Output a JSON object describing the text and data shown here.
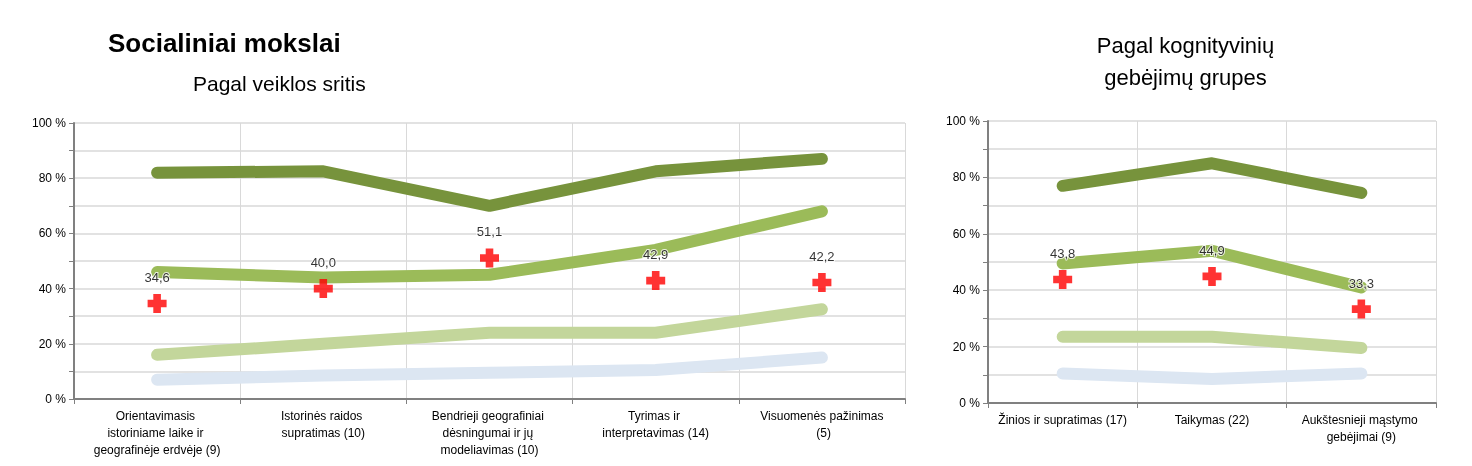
{
  "chart_data": [
    {
      "type": "line",
      "title": "Socialiniai mokslai",
      "subtitle": "Pagal veiklos sritis",
      "categories": [
        "Orientavimasis istoriniame laike ir geografinėje erdvėje (9)",
        "Istorinės raidos supratimas (10)",
        "Bendrieji geografiniai dėsningumai ir jų modeliavimas (10)",
        "Tyrimas ir interpretavimas (14)",
        "Visuomenės pažinimas (5)"
      ],
      "series": [
        {
          "color": "#77933c",
          "values": [
            82,
            82.5,
            70,
            82.5,
            87
          ]
        },
        {
          "color": "#9bbb59",
          "values": [
            46,
            44,
            45,
            54,
            68
          ]
        },
        {
          "color": "#c3d69b",
          "values": [
            16,
            20,
            24,
            24,
            32.5
          ]
        },
        {
          "color": "#dce6f2",
          "values": [
            7,
            8.5,
            9.5,
            10.5,
            15
          ]
        },
        {
          "type": "scatter",
          "marker": "cross",
          "color": "#ff0000",
          "values": [
            34.6,
            40.0,
            51.1,
            42.9,
            42.2
          ],
          "value_labels": [
            "34,6",
            "40,0",
            "51,1",
            "42,9",
            "42,2"
          ]
        }
      ],
      "ylim": [
        0,
        100
      ],
      "yticks": [
        {
          "value": 0,
          "label": "0 %"
        },
        {
          "value": 10,
          "label": null
        },
        {
          "value": 20,
          "label": "20 %"
        },
        {
          "value": 30,
          "label": null
        },
        {
          "value": 40,
          "label": "40 %"
        },
        {
          "value": 50,
          "label": null
        },
        {
          "value": 60,
          "label": "60 %"
        },
        {
          "value": 70,
          "label": null
        },
        {
          "value": 80,
          "label": "80 %"
        },
        {
          "value": 90,
          "label": null
        },
        {
          "value": 100,
          "label": "100 %"
        }
      ],
      "grid": true,
      "line_style": "solid"
    },
    {
      "type": "line",
      "title": "Pagal kognityvinių\ngebėjimų grupes",
      "categories": [
        "Žinios ir supratimas (17)",
        "Taikymas (22)",
        "Aukštesnieji mąstymo gebėjimai (9)"
      ],
      "series": [
        {
          "color": "#77933c",
          "values": [
            77,
            85,
            74.5
          ]
        },
        {
          "color": "#9bbb59",
          "values": [
            49.5,
            54,
            41
          ]
        },
        {
          "color": "#c3d69b",
          "values": [
            23.5,
            23.5,
            19.5
          ]
        },
        {
          "color": "#dce6f2",
          "values": [
            10.5,
            8.5,
            10.5
          ]
        },
        {
          "type": "scatter",
          "marker": "cross",
          "color": "#ff0000",
          "values": [
            43.8,
            44.9,
            33.3
          ],
          "value_labels": [
            "43,8",
            "44,9",
            "33,3"
          ]
        }
      ],
      "ylim": [
        0,
        100
      ],
      "yticks": [
        {
          "value": 0,
          "label": "0 %"
        },
        {
          "value": 10,
          "label": null
        },
        {
          "value": 20,
          "label": "20 %"
        },
        {
          "value": 30,
          "label": null
        },
        {
          "value": 40,
          "label": "40 %"
        },
        {
          "value": 50,
          "label": null
        },
        {
          "value": 60,
          "label": "60 %"
        },
        {
          "value": 70,
          "label": null
        },
        {
          "value": 80,
          "label": "80 %"
        },
        {
          "value": 90,
          "label": null
        },
        {
          "value": 100,
          "label": "100 %"
        }
      ],
      "grid": true,
      "line_style": "solid"
    }
  ]
}
